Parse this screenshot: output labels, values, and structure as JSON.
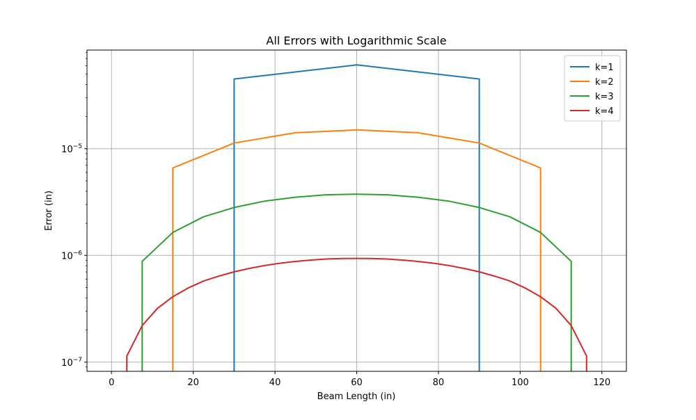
{
  "chart_data": {
    "type": "line",
    "title": "All Errors with Logarithmic Scale",
    "xlabel": "Beam Length (in)",
    "ylabel": "Error (in)",
    "xlim": [
      -6,
      126
    ],
    "ylim": [
      8.2e-08,
      8.4e-05
    ],
    "yscale": "log",
    "grid": true,
    "legend_position": "top-right",
    "x_ticks": [
      {
        "value": 0,
        "label": "0"
      },
      {
        "value": 20,
        "label": "20"
      },
      {
        "value": 40,
        "label": "40"
      },
      {
        "value": 60,
        "label": "60"
      },
      {
        "value": 80,
        "label": "80"
      },
      {
        "value": 100,
        "label": "100"
      },
      {
        "value": 120,
        "label": "120"
      }
    ],
    "y_ticks": [
      {
        "value": 1e-07,
        "base": "10",
        "exp": "−7"
      },
      {
        "value": 1e-06,
        "base": "10",
        "exp": "−6"
      },
      {
        "value": 1e-05,
        "base": "10",
        "exp": "−5"
      }
    ],
    "series": [
      {
        "name": "k=1",
        "color": "#1f77b4",
        "points": [
          [
            30,
            1e-09
          ],
          [
            30,
            4.5e-05
          ],
          [
            60,
            6.1e-05
          ],
          [
            90,
            4.5e-05
          ],
          [
            90,
            1e-09
          ]
        ]
      },
      {
        "name": "k=2",
        "color": "#ff7f0e",
        "points": [
          [
            15,
            1e-09
          ],
          [
            15,
            6.6e-06
          ],
          [
            30,
            1.13e-05
          ],
          [
            45,
            1.41e-05
          ],
          [
            60,
            1.5e-05
          ],
          [
            75,
            1.41e-05
          ],
          [
            90,
            1.13e-05
          ],
          [
            105,
            6.6e-06
          ],
          [
            105,
            1e-09
          ]
        ]
      },
      {
        "name": "k=3",
        "color": "#2ca02c",
        "points": [
          [
            7.5,
            1e-09
          ],
          [
            7.5,
            8.8e-07
          ],
          [
            15,
            1.64e-06
          ],
          [
            22.5,
            2.3e-06
          ],
          [
            30,
            2.81e-06
          ],
          [
            37.5,
            3.23e-06
          ],
          [
            45,
            3.51e-06
          ],
          [
            52.5,
            3.7e-06
          ],
          [
            60,
            3.75e-06
          ],
          [
            67.5,
            3.7e-06
          ],
          [
            75,
            3.51e-06
          ],
          [
            82.5,
            3.23e-06
          ],
          [
            90,
            2.81e-06
          ],
          [
            97.5,
            2.3e-06
          ],
          [
            105,
            1.64e-06
          ],
          [
            112.5,
            8.8e-07
          ],
          [
            112.5,
            1e-09
          ]
        ]
      },
      {
        "name": "k=4",
        "color": "#d62728",
        "points": [
          [
            3.75,
            1e-09
          ],
          [
            3.75,
            1.14e-07
          ],
          [
            7.5,
            2.2e-07
          ],
          [
            11.25,
            3.2e-07
          ],
          [
            15,
            4.1e-07
          ],
          [
            18.75,
            4.95e-07
          ],
          [
            22.5,
            5.75e-07
          ],
          [
            26.25,
            6.4e-07
          ],
          [
            30,
            7.02e-07
          ],
          [
            33.75,
            7.55e-07
          ],
          [
            37.5,
            8.05e-07
          ],
          [
            41.25,
            8.45e-07
          ],
          [
            45,
            8.78e-07
          ],
          [
            48.75,
            9.05e-07
          ],
          [
            52.5,
            9.25e-07
          ],
          [
            56.25,
            9.35e-07
          ],
          [
            60,
            9.38e-07
          ],
          [
            63.75,
            9.35e-07
          ],
          [
            67.5,
            9.25e-07
          ],
          [
            71.25,
            9.05e-07
          ],
          [
            75,
            8.78e-07
          ],
          [
            78.75,
            8.45e-07
          ],
          [
            82.5,
            8.05e-07
          ],
          [
            86.25,
            7.55e-07
          ],
          [
            90,
            7.02e-07
          ],
          [
            93.75,
            6.4e-07
          ],
          [
            97.5,
            5.75e-07
          ],
          [
            101.25,
            4.95e-07
          ],
          [
            105,
            4.1e-07
          ],
          [
            108.75,
            3.2e-07
          ],
          [
            112.5,
            2.2e-07
          ],
          [
            116.25,
            1.14e-07
          ],
          [
            116.25,
            1e-09
          ]
        ]
      }
    ]
  }
}
